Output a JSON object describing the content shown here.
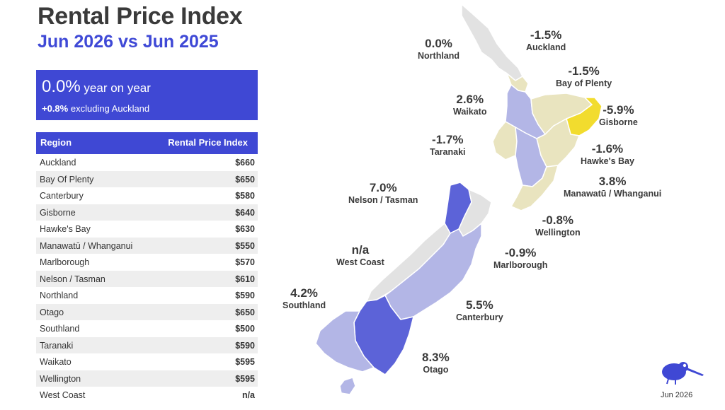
{
  "title": "Rental Price Index",
  "subtitle": "Jun 2026 vs Jun 2025",
  "kpi": {
    "value": "0.0%",
    "value_label": " year on year",
    "secondary_value": "+0.8%",
    "secondary_label": " excluding Auckland"
  },
  "table": {
    "headers": [
      "Region",
      "Rental Price Index"
    ],
    "rows": [
      {
        "region": "Auckland",
        "value": "$660"
      },
      {
        "region": "Bay Of Plenty",
        "value": "$650"
      },
      {
        "region": "Canterbury",
        "value": "$580"
      },
      {
        "region": "Gisborne",
        "value": "$640"
      },
      {
        "region": "Hawke's Bay",
        "value": "$630"
      },
      {
        "region": "Manawatū / Whanganui",
        "value": "$550"
      },
      {
        "region": "Marlborough",
        "value": "$570"
      },
      {
        "region": "Nelson / Tasman",
        "value": "$610"
      },
      {
        "region": "Northland",
        "value": "$590"
      },
      {
        "region": "Otago",
        "value": "$650"
      },
      {
        "region": "Southland",
        "value": "$500"
      },
      {
        "region": "Taranaki",
        "value": "$590"
      },
      {
        "region": "Waikato",
        "value": "$595"
      },
      {
        "region": "Wellington",
        "value": "$595"
      },
      {
        "region": "West Coast",
        "value": "n/a"
      }
    ]
  },
  "map": {
    "colors": {
      "negative_strong": "#f2dc2e",
      "negative_light": "#e9e4bf",
      "neutral": "#e2e2e2",
      "positive_light": "#b3b6e6",
      "positive_mid": "#8b8fdc",
      "positive_strong": "#5c63d8"
    },
    "labels": [
      {
        "pct": "0.0%",
        "name": "Northland"
      },
      {
        "pct": "-1.5%",
        "name": "Auckland"
      },
      {
        "pct": "-1.5%",
        "name": "Bay of Plenty"
      },
      {
        "pct": "2.6%",
        "name": "Waikato"
      },
      {
        "pct": "-5.9%",
        "name": "Gisborne"
      },
      {
        "pct": "-1.7%",
        "name": "Taranaki"
      },
      {
        "pct": "-1.6%",
        "name": "Hawke's Bay"
      },
      {
        "pct": "7.0%",
        "name": "Nelson / Tasman"
      },
      {
        "pct": "3.8%",
        "name": "Manawatū / Whanganui"
      },
      {
        "pct": "-0.8%",
        "name": "Wellington"
      },
      {
        "pct": "n/a",
        "name": "West Coast"
      },
      {
        "pct": "-0.9%",
        "name": "Marlborough"
      },
      {
        "pct": "4.2%",
        "name": "Southland"
      },
      {
        "pct": "5.5%",
        "name": "Canterbury"
      },
      {
        "pct": "8.3%",
        "name": "Otago"
      }
    ]
  },
  "footer": {
    "date": "Jun 2026",
    "logo_icon": "kiwi-bird-icon"
  }
}
